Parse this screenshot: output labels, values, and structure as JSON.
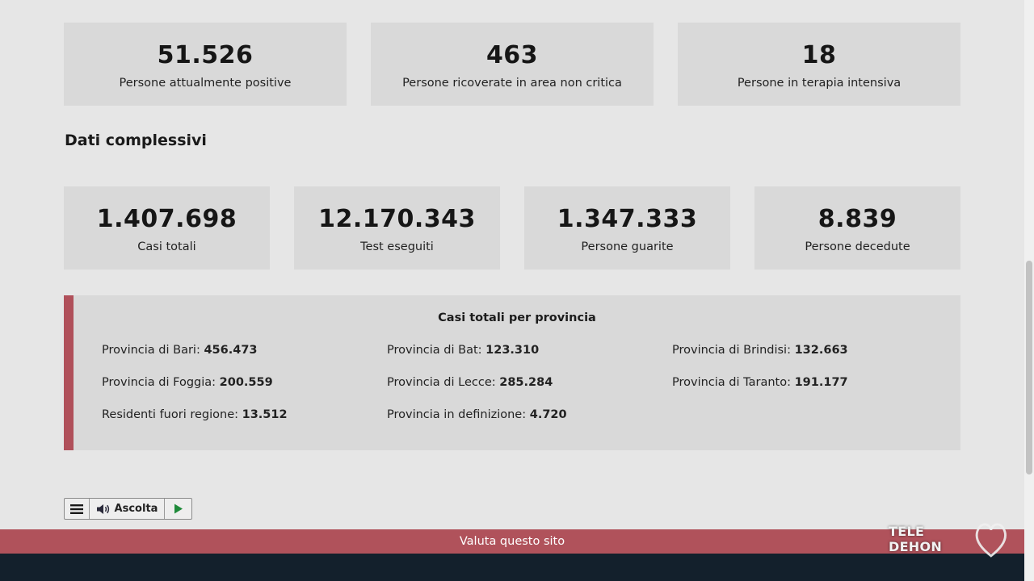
{
  "top_stats": [
    {
      "value": "51.526",
      "label": "Persone attualmente positive"
    },
    {
      "value": "463",
      "label": "Persone ricoverate in area non critica"
    },
    {
      "value": "18",
      "label": "Persone in terapia intensiva"
    }
  ],
  "section_title": "Dati complessivi",
  "overall_stats": [
    {
      "value": "1.407.698",
      "label": "Casi totali"
    },
    {
      "value": "12.170.343",
      "label": "Test eseguiti"
    },
    {
      "value": "1.347.333",
      "label": "Persone guarite"
    },
    {
      "value": "8.839",
      "label": "Persone decedute"
    }
  ],
  "provinces": {
    "title": "Casi totali per provincia",
    "items": [
      {
        "label": "Provincia di Bari:",
        "value": "456.473"
      },
      {
        "label": "Provincia di Bat:",
        "value": "123.310"
      },
      {
        "label": "Provincia di Brindisi:",
        "value": "132.663"
      },
      {
        "label": "Provincia di Foggia:",
        "value": "200.559"
      },
      {
        "label": "Provincia di Lecce:",
        "value": "285.284"
      },
      {
        "label": "Provincia di Taranto:",
        "value": "191.177"
      },
      {
        "label": "Residenti fuori regione:",
        "value": "13.512"
      },
      {
        "label": "Provincia in definizione:",
        "value": "4.720"
      }
    ]
  },
  "player": {
    "listen_label": "Ascolta",
    "menu_icon": "hamburger-icon",
    "speaker_icon": "speaker-icon",
    "play_icon": "play-icon"
  },
  "rate_bar": {
    "label": "Valuta questo sito"
  },
  "watermark": {
    "text": "TELE DEHON"
  },
  "colors": {
    "accent": "#b0525b",
    "card_bg": "#d9d9d9",
    "page_bg": "#e6e6e6",
    "footer_bg": "#13202c"
  }
}
